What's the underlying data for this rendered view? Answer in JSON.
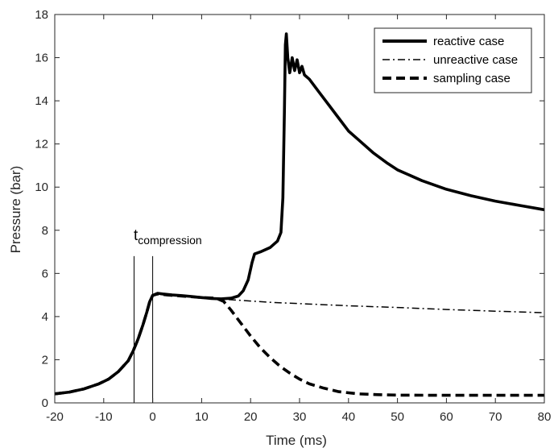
{
  "chart_data": {
    "type": "line",
    "title": "",
    "xlabel": "Time (ms)",
    "ylabel": "Pressure (bar)",
    "xlim": [
      -20,
      80
    ],
    "ylim": [
      0,
      18
    ],
    "xticks": [
      -20,
      -10,
      0,
      10,
      20,
      30,
      40,
      50,
      60,
      70,
      80
    ],
    "yticks": [
      0,
      2,
      4,
      6,
      8,
      10,
      12,
      14,
      16,
      18
    ],
    "grid": false,
    "legend_position": "top-right",
    "annotation": {
      "base": "t",
      "subscript": "compression",
      "markers_x": [
        -3.8,
        0
      ]
    },
    "series": [
      {
        "name": "reactive case",
        "style": "solid-thick",
        "color": "#000000",
        "points": [
          [
            -20,
            0.42
          ],
          [
            -17,
            0.5
          ],
          [
            -14,
            0.65
          ],
          [
            -11,
            0.88
          ],
          [
            -9,
            1.1
          ],
          [
            -7,
            1.45
          ],
          [
            -5,
            1.95
          ],
          [
            -4,
            2.4
          ],
          [
            -3,
            2.95
          ],
          [
            -2,
            3.6
          ],
          [
            -1.2,
            4.2
          ],
          [
            -0.6,
            4.7
          ],
          [
            0,
            4.98
          ],
          [
            1,
            5.08
          ],
          [
            2,
            5.05
          ],
          [
            4,
            5.0
          ],
          [
            6,
            4.97
          ],
          [
            8,
            4.93
          ],
          [
            10,
            4.88
          ],
          [
            12,
            4.84
          ],
          [
            14,
            4.82
          ],
          [
            16,
            4.85
          ],
          [
            17.5,
            4.95
          ],
          [
            18.5,
            5.2
          ],
          [
            19.5,
            5.7
          ],
          [
            20.3,
            6.5
          ],
          [
            20.8,
            6.9
          ],
          [
            22,
            7.0
          ],
          [
            24,
            7.2
          ],
          [
            25.5,
            7.5
          ],
          [
            26.2,
            7.9
          ],
          [
            26.6,
            9.5
          ],
          [
            26.9,
            13.5
          ],
          [
            27.1,
            16.6
          ],
          [
            27.3,
            17.1
          ],
          [
            27.6,
            16.0
          ],
          [
            28,
            15.3
          ],
          [
            28.5,
            16.0
          ],
          [
            29,
            15.4
          ],
          [
            29.5,
            15.9
          ],
          [
            30,
            15.3
          ],
          [
            30.5,
            15.6
          ],
          [
            31,
            15.2
          ],
          [
            32,
            15.0
          ],
          [
            34,
            14.4
          ],
          [
            36,
            13.8
          ],
          [
            38,
            13.2
          ],
          [
            40,
            12.6
          ],
          [
            42,
            12.2
          ],
          [
            45,
            11.6
          ],
          [
            48,
            11.1
          ],
          [
            50,
            10.8
          ],
          [
            55,
            10.3
          ],
          [
            60,
            9.9
          ],
          [
            65,
            9.6
          ],
          [
            70,
            9.35
          ],
          [
            75,
            9.15
          ],
          [
            80,
            8.95
          ]
        ]
      },
      {
        "name": "unreactive case",
        "style": "dash-dot",
        "color": "#000000",
        "points": [
          [
            -20,
            0.42
          ],
          [
            -17,
            0.5
          ],
          [
            -14,
            0.65
          ],
          [
            -11,
            0.88
          ],
          [
            -9,
            1.1
          ],
          [
            -7,
            1.45
          ],
          [
            -5,
            1.95
          ],
          [
            -4,
            2.4
          ],
          [
            -3,
            2.95
          ],
          [
            -2,
            3.6
          ],
          [
            -1.2,
            4.2
          ],
          [
            -0.6,
            4.7
          ],
          [
            0,
            4.98
          ],
          [
            1,
            5.05
          ],
          [
            2,
            5.02
          ],
          [
            5,
            4.96
          ],
          [
            10,
            4.88
          ],
          [
            15,
            4.8
          ],
          [
            20,
            4.72
          ],
          [
            25,
            4.65
          ],
          [
            30,
            4.6
          ],
          [
            40,
            4.5
          ],
          [
            50,
            4.42
          ],
          [
            60,
            4.33
          ],
          [
            70,
            4.25
          ],
          [
            80,
            4.18
          ]
        ]
      },
      {
        "name": "sampling case",
        "style": "dashed-thick",
        "color": "#000000",
        "points": [
          [
            -20,
            0.42
          ],
          [
            -17,
            0.5
          ],
          [
            -14,
            0.65
          ],
          [
            -11,
            0.88
          ],
          [
            -9,
            1.1
          ],
          [
            -7,
            1.45
          ],
          [
            -5,
            1.95
          ],
          [
            -4,
            2.4
          ],
          [
            -3,
            2.95
          ],
          [
            -2,
            3.6
          ],
          [
            -1.2,
            4.2
          ],
          [
            -0.6,
            4.7
          ],
          [
            0,
            4.98
          ],
          [
            1,
            5.05
          ],
          [
            3,
            5.0
          ],
          [
            6,
            4.95
          ],
          [
            10,
            4.88
          ],
          [
            13,
            4.85
          ],
          [
            14.5,
            4.7
          ],
          [
            16,
            4.3
          ],
          [
            18,
            3.7
          ],
          [
            20,
            3.1
          ],
          [
            22,
            2.55
          ],
          [
            24,
            2.1
          ],
          [
            26,
            1.7
          ],
          [
            28,
            1.38
          ],
          [
            30,
            1.1
          ],
          [
            32,
            0.88
          ],
          [
            35,
            0.68
          ],
          [
            38,
            0.52
          ],
          [
            42,
            0.42
          ],
          [
            46,
            0.38
          ],
          [
            50,
            0.36
          ],
          [
            60,
            0.35
          ],
          [
            70,
            0.35
          ],
          [
            80,
            0.35
          ]
        ]
      }
    ]
  }
}
